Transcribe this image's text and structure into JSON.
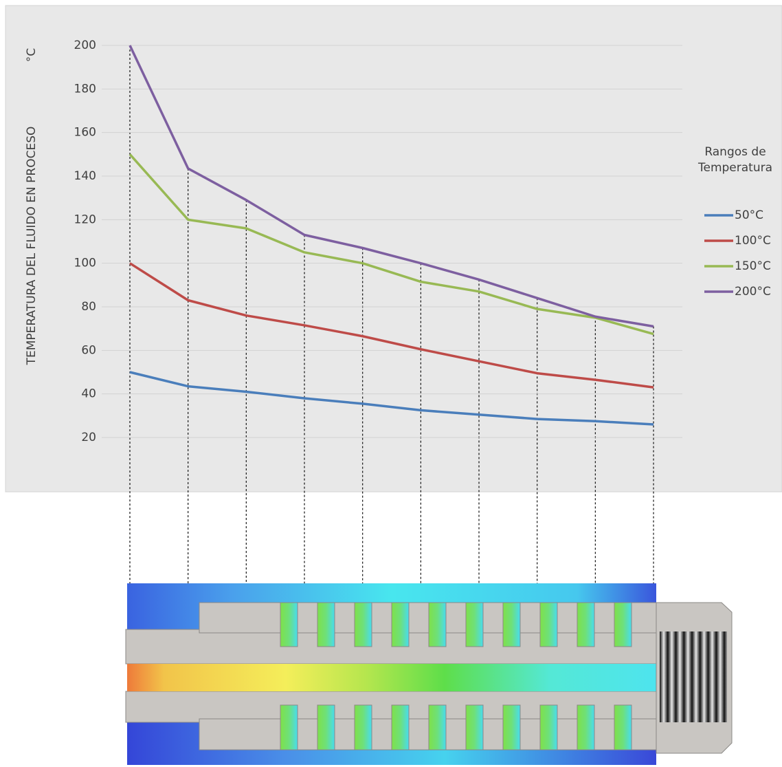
{
  "chart_data": {
    "type": "line",
    "y_label": "TEMPERATURA DEL FLUIDO EN PROCESO",
    "y_unit": "°C",
    "legend_title": "Rangos de Temperatura",
    "legend": "right",
    "grid": true,
    "categories": [
      null,
      null,
      null,
      null,
      null,
      null,
      null,
      null,
      null,
      null
    ],
    "ylim": [
      20,
      200
    ],
    "yticks": [
      20,
      40,
      60,
      80,
      100,
      120,
      140,
      160,
      180,
      200
    ],
    "series": [
      {
        "name": "50°C",
        "color": "#4a7ebb",
        "values": [
          50,
          43.5,
          41,
          38,
          35.5,
          32.5,
          30.5,
          28.5,
          27.5,
          26
        ]
      },
      {
        "name": "100°C",
        "color": "#be4b48",
        "values": [
          100,
          83,
          76,
          71.5,
          66.5,
          60.5,
          55,
          49.5,
          46.5,
          43
        ]
      },
      {
        "name": "150°C",
        "color": "#98b954",
        "values": [
          150,
          120,
          116,
          105,
          100,
          91.5,
          87,
          79,
          75,
          67.5
        ]
      },
      {
        "name": "200°C",
        "color": "#7d5fa0",
        "values": [
          200,
          143.5,
          129,
          113,
          107,
          100,
          92.5,
          84,
          75.5,
          71
        ]
      }
    ]
  }
}
